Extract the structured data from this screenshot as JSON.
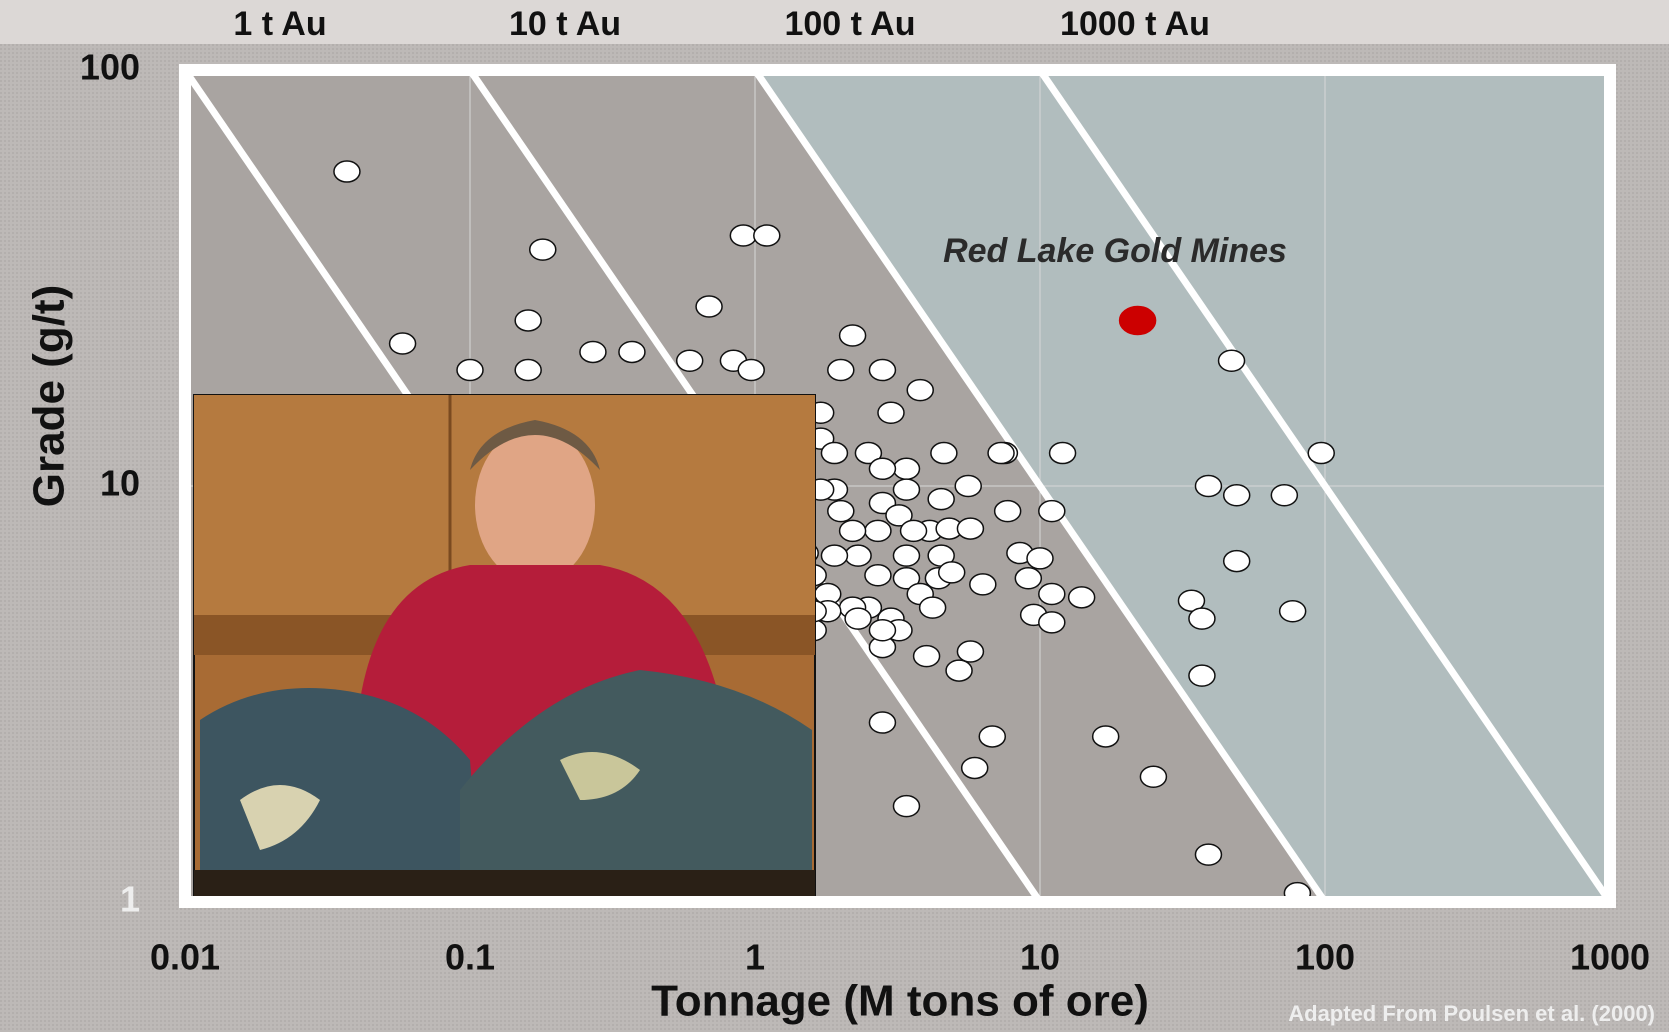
{
  "chart_data": {
    "type": "scatter",
    "x_label": "Tonnage (M tons of ore)",
    "y_label": "Grade (g/t)",
    "annotation": "Red Lake Gold Mines",
    "source": "Adapted From Poulsen et al. (2000)",
    "log_x": true,
    "log_y": true,
    "grid": true,
    "xlim": [
      0.01,
      1000
    ],
    "ylim": [
      1,
      100
    ],
    "xticks": [
      0.01,
      0.1,
      1,
      10,
      100,
      1000
    ],
    "yticks": [
      1,
      10,
      100
    ],
    "contours": [
      {
        "label": "1 t Au",
        "value": 1
      },
      {
        "label": "10 t Au",
        "value": 10
      },
      {
        "label": "100 t Au",
        "value": 100
      },
      {
        "label": "1000 t Au",
        "value": 1000
      }
    ],
    "series": [
      {
        "color": "#ffffff",
        "x": [
          0.037,
          0.18,
          0.91,
          1.1,
          0.16,
          0.058,
          0.1,
          0.16,
          0.27,
          0.37,
          0.69,
          0.59,
          0.84,
          0.97,
          2.2,
          2.0,
          2.8,
          3.8,
          3.0,
          1.7,
          1.7,
          4.6,
          7.5,
          12,
          7.3,
          47,
          97,
          39,
          49,
          72,
          49,
          34,
          37,
          77,
          37,
          17,
          25,
          39,
          80,
          14,
          11,
          7.7,
          8.5,
          10,
          9.1,
          11,
          9.5,
          11,
          6.3,
          5.7,
          5.2,
          6.8,
          5.9,
          2.8,
          3.4,
          4.0,
          2.8,
          2.5,
          3.4,
          1.9,
          2.8,
          5.6,
          4.5,
          3.4,
          2.8,
          1.9,
          2.0,
          3.2,
          4.1,
          4.8,
          5.7,
          3.6,
          2.7,
          2.2,
          3.4,
          4.5,
          2.3,
          1.9,
          2.7,
          3.4,
          4.4,
          4.9,
          3.8,
          4.2,
          3.0,
          2.5,
          2.2,
          2.3,
          3.2,
          2.8,
          1.6,
          1.8,
          1.6,
          1.8,
          1.7,
          1.5,
          1.6
        ],
        "values": [
          57,
          37,
          40,
          40,
          25,
          22,
          19,
          19,
          21,
          21,
          27,
          20,
          20,
          19,
          23,
          19,
          19,
          17,
          15,
          15,
          13,
          12,
          12,
          12,
          12,
          20,
          12,
          10,
          9.5,
          9.5,
          6.6,
          5.3,
          4.8,
          5.0,
          3.5,
          2.5,
          2.0,
          1.3,
          1.05,
          5.4,
          8.7,
          8.7,
          6.9,
          6.7,
          6.0,
          5.5,
          4.9,
          4.7,
          5.8,
          4.0,
          3.6,
          2.5,
          2.1,
          2.7,
          1.7,
          3.9,
          4.1,
          12,
          11,
          12,
          11,
          10,
          9.3,
          9.8,
          9.1,
          9.8,
          8.7,
          8.5,
          7.8,
          7.9,
          7.9,
          7.8,
          7.8,
          7.8,
          6.8,
          6.8,
          6.8,
          6.8,
          6.1,
          6.0,
          6.0,
          6.2,
          5.5,
          5.1,
          4.8,
          5.1,
          5.1,
          4.8,
          4.5,
          4.5,
          4.5,
          5.5,
          6.1,
          5.0,
          9.8,
          6.9,
          5.0
        ]
      },
      {
        "color": "#cc0000",
        "x": [
          22
        ],
        "values": [
          25
        ]
      }
    ]
  }
}
